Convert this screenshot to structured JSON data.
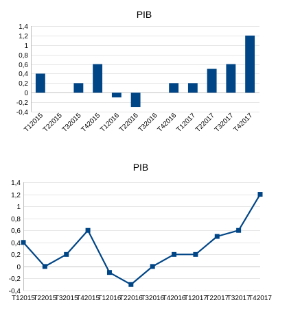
{
  "chart_data": [
    {
      "type": "bar",
      "title": "PIB",
      "categories": [
        "T12015",
        "T22015",
        "T32015",
        "T42015",
        "T12016",
        "T22016",
        "T32016",
        "T42016",
        "T12017",
        "T22017",
        "T32017",
        "T42017"
      ],
      "values": [
        0.4,
        0,
        0.2,
        0.6,
        -0.1,
        -0.3,
        0,
        0.2,
        0.2,
        0.5,
        0.6,
        1.2
      ],
      "ylim": [
        -0.4,
        1.4
      ],
      "yticks": [
        "-0,4",
        "-0,2",
        "0",
        "0,2",
        "0,4",
        "0,6",
        "0,8",
        "1",
        "1,2",
        "1,4"
      ],
      "grid": true,
      "color": "#004586"
    },
    {
      "type": "line",
      "title": "PIB",
      "categories": [
        "T12015",
        "T22015",
        "T32015",
        "T42015",
        "T12016",
        "T22016",
        "T32016",
        "T42016",
        "T12017",
        "T22017",
        "T32017",
        "T42017"
      ],
      "values": [
        0.4,
        0,
        0.2,
        0.6,
        -0.1,
        -0.3,
        0,
        0.2,
        0.2,
        0.5,
        0.6,
        1.2
      ],
      "ylim": [
        -0.4,
        1.4
      ],
      "yticks": [
        "-0,4",
        "-0,2",
        "0",
        "0,2",
        "0,4",
        "0,6",
        "0,8",
        "1",
        "1,2",
        "1,4"
      ],
      "grid": true,
      "color": "#004586"
    }
  ]
}
